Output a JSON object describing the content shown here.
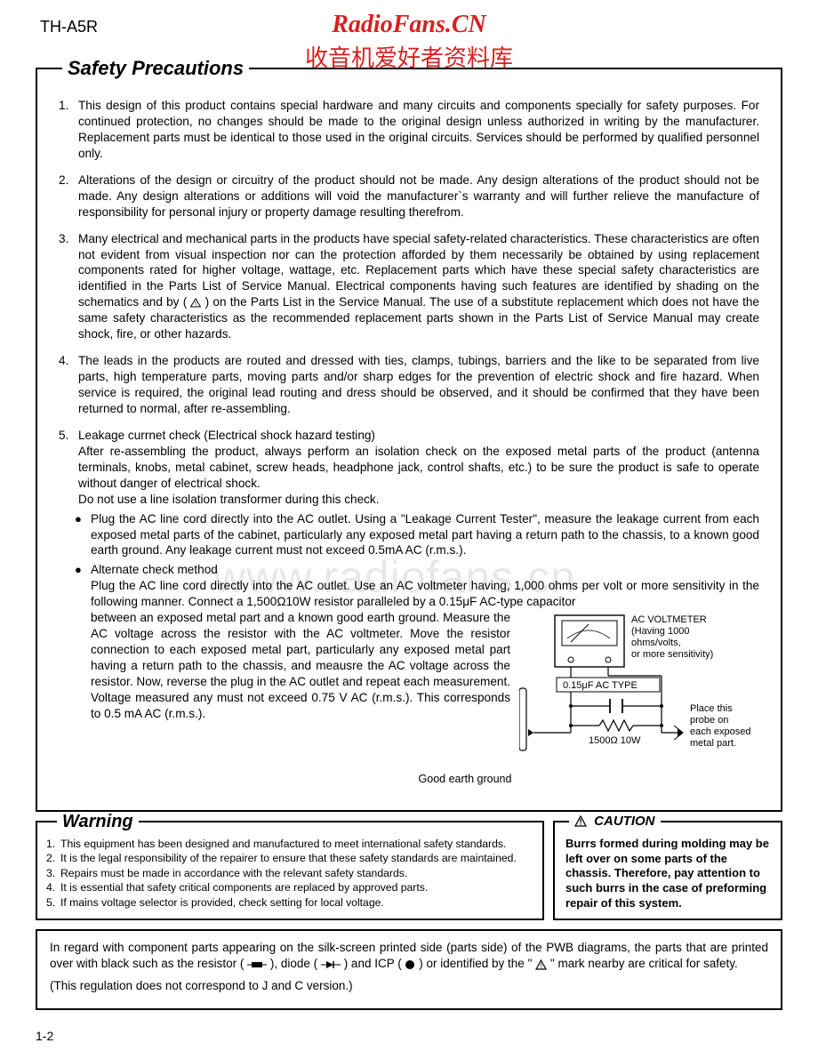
{
  "model": "TH-A5R",
  "brand_line1": "RadioFans.CN",
  "brand_line2": "收音机爱好者资料库",
  "watermark": "www.radiofans.cn",
  "safety_title": "Safety Precautions",
  "precautions": [
    "This design of this product contains special hardware and many circuits and components specially for safety purposes. For continued protection, no changes should be made to the original design unless authorized in writing by the manufacturer. Replacement parts must be identical to those used in the original circuits. Services should be performed by qualified personnel only.",
    "Alterations of the design or circuitry of the product should not be made. Any design alterations of the product should not be made. Any design alterations or additions will void the manufacturer`s warranty and will further relieve the manufacture of responsibility for personal injury or property damage resulting therefrom.",
    "Many electrical and mechanical parts in the products have special safety-related characteristics. These characteristics are often not evident from visual inspection nor can the protection afforded by them necessarily be obtained by using replacement components rated for higher voltage, wattage, etc. Replacement parts which have these special safety characteristics are identified in the Parts List of Service Manual. Electrical components having such features are identified by shading on the schematics and by (   ) on the Parts List in the Service Manual. The use of a substitute replacement which does not have the same safety characteristics as the recommended replacement parts shown in the Parts List of Service Manual may create shock, fire, or other hazards.",
    "The leads in the products are routed and dressed with ties, clamps, tubings, barriers and the like to be separated from live parts, high temperature parts, moving parts and/or sharp edges for the prevention of electric shock and fire hazard. When service is required, the original lead routing and dress should be observed, and it should be confirmed that they have been returned to normal, after re-assembling."
  ],
  "leakage_heading": "Leakage currnet check (Electrical shock hazard testing)",
  "leakage_intro": "After re-assembling the product, always perform an isolation check on the exposed metal parts of the product (antenna terminals, knobs, metal cabinet, screw heads, headphone jack, control shafts, etc.) to be sure the product is safe to operate without danger of electrical shock.",
  "leakage_noline": "Do not use a line isolation transformer during this check.",
  "bullet1": "Plug the AC line cord directly into the AC outlet. Using a \"Leakage Current Tester\", measure the leakage current from each exposed metal parts of the cabinet, particularly any exposed metal part having a return path to the chassis, to a known good earth ground. Any leakage current must not exceed 0.5mA AC (r.m.s.).",
  "bullet2_title": "Alternate check method",
  "bullet2_line1": "Plug the AC line cord directly into the AC outlet. Use an AC voltmeter having, 1,000 ohms per volt or more sensitivity in the following manner. Connect a 1,500Ω10W resistor paralleled by a 0.15μF AC-type capacitor",
  "bullet2_rest": "between an exposed metal part and a known good earth ground. Measure the AC voltage across the resistor with the AC voltmeter.\nMove the resistor connection to each exposed metal part, particularly any exposed metal part having a return  path to the chassis, and meausre the AC voltage across the resistor. Now, reverse the plug in the AC outlet and repeat each measurement. Voltage measured any must not exceed 0.75 V AC (r.m.s.). This corresponds to  0.5 mA AC (r.m.s.).",
  "diagram": {
    "voltmeter_label": "AC VOLTMETER\n(Having 1000\nohms/volts,\nor more sensitivity)",
    "cap_label": "0.15μF  AC TYPE",
    "res_label": "1500Ω   10W",
    "probe_note": "Place this\nprobe on\neach exposed\nmetal part.",
    "ground_label": "Good earth ground"
  },
  "warning_title": "Warning",
  "warnings": [
    "This equipment has been designed and manufactured to meet international safety standards.",
    "It is the legal responsibility of the repairer to ensure that these safety standards are maintained.",
    "Repairs must be made in accordance with the relevant safety standards.",
    "It is essential that safety critical components are replaced by approved parts.",
    "If mains voltage selector is provided, check setting for local voltage."
  ],
  "caution_title": "CAUTION",
  "caution_body": "Burrs formed during molding may be left over on some parts of the chassis. Therefore, pay attention to such burrs in the case of preforming repair of this system.",
  "regard_p1a": "In regard with component parts appearing on the silk-screen printed side (parts side) of the PWB diagrams, the parts that are printed over with black such as the resistor (",
  "regard_p1b": "), diode (",
  "regard_p1c": ") and ICP (",
  "regard_p1d": ") or identified by the \"",
  "regard_p1e": "\" mark nearby are critical for safety.",
  "regard_p2": "(This regulation does not correspond to J and C version.)",
  "page_no": "1-2",
  "colors": {
    "red": "#d82020",
    "black": "#000000",
    "bg": "#ffffff"
  }
}
